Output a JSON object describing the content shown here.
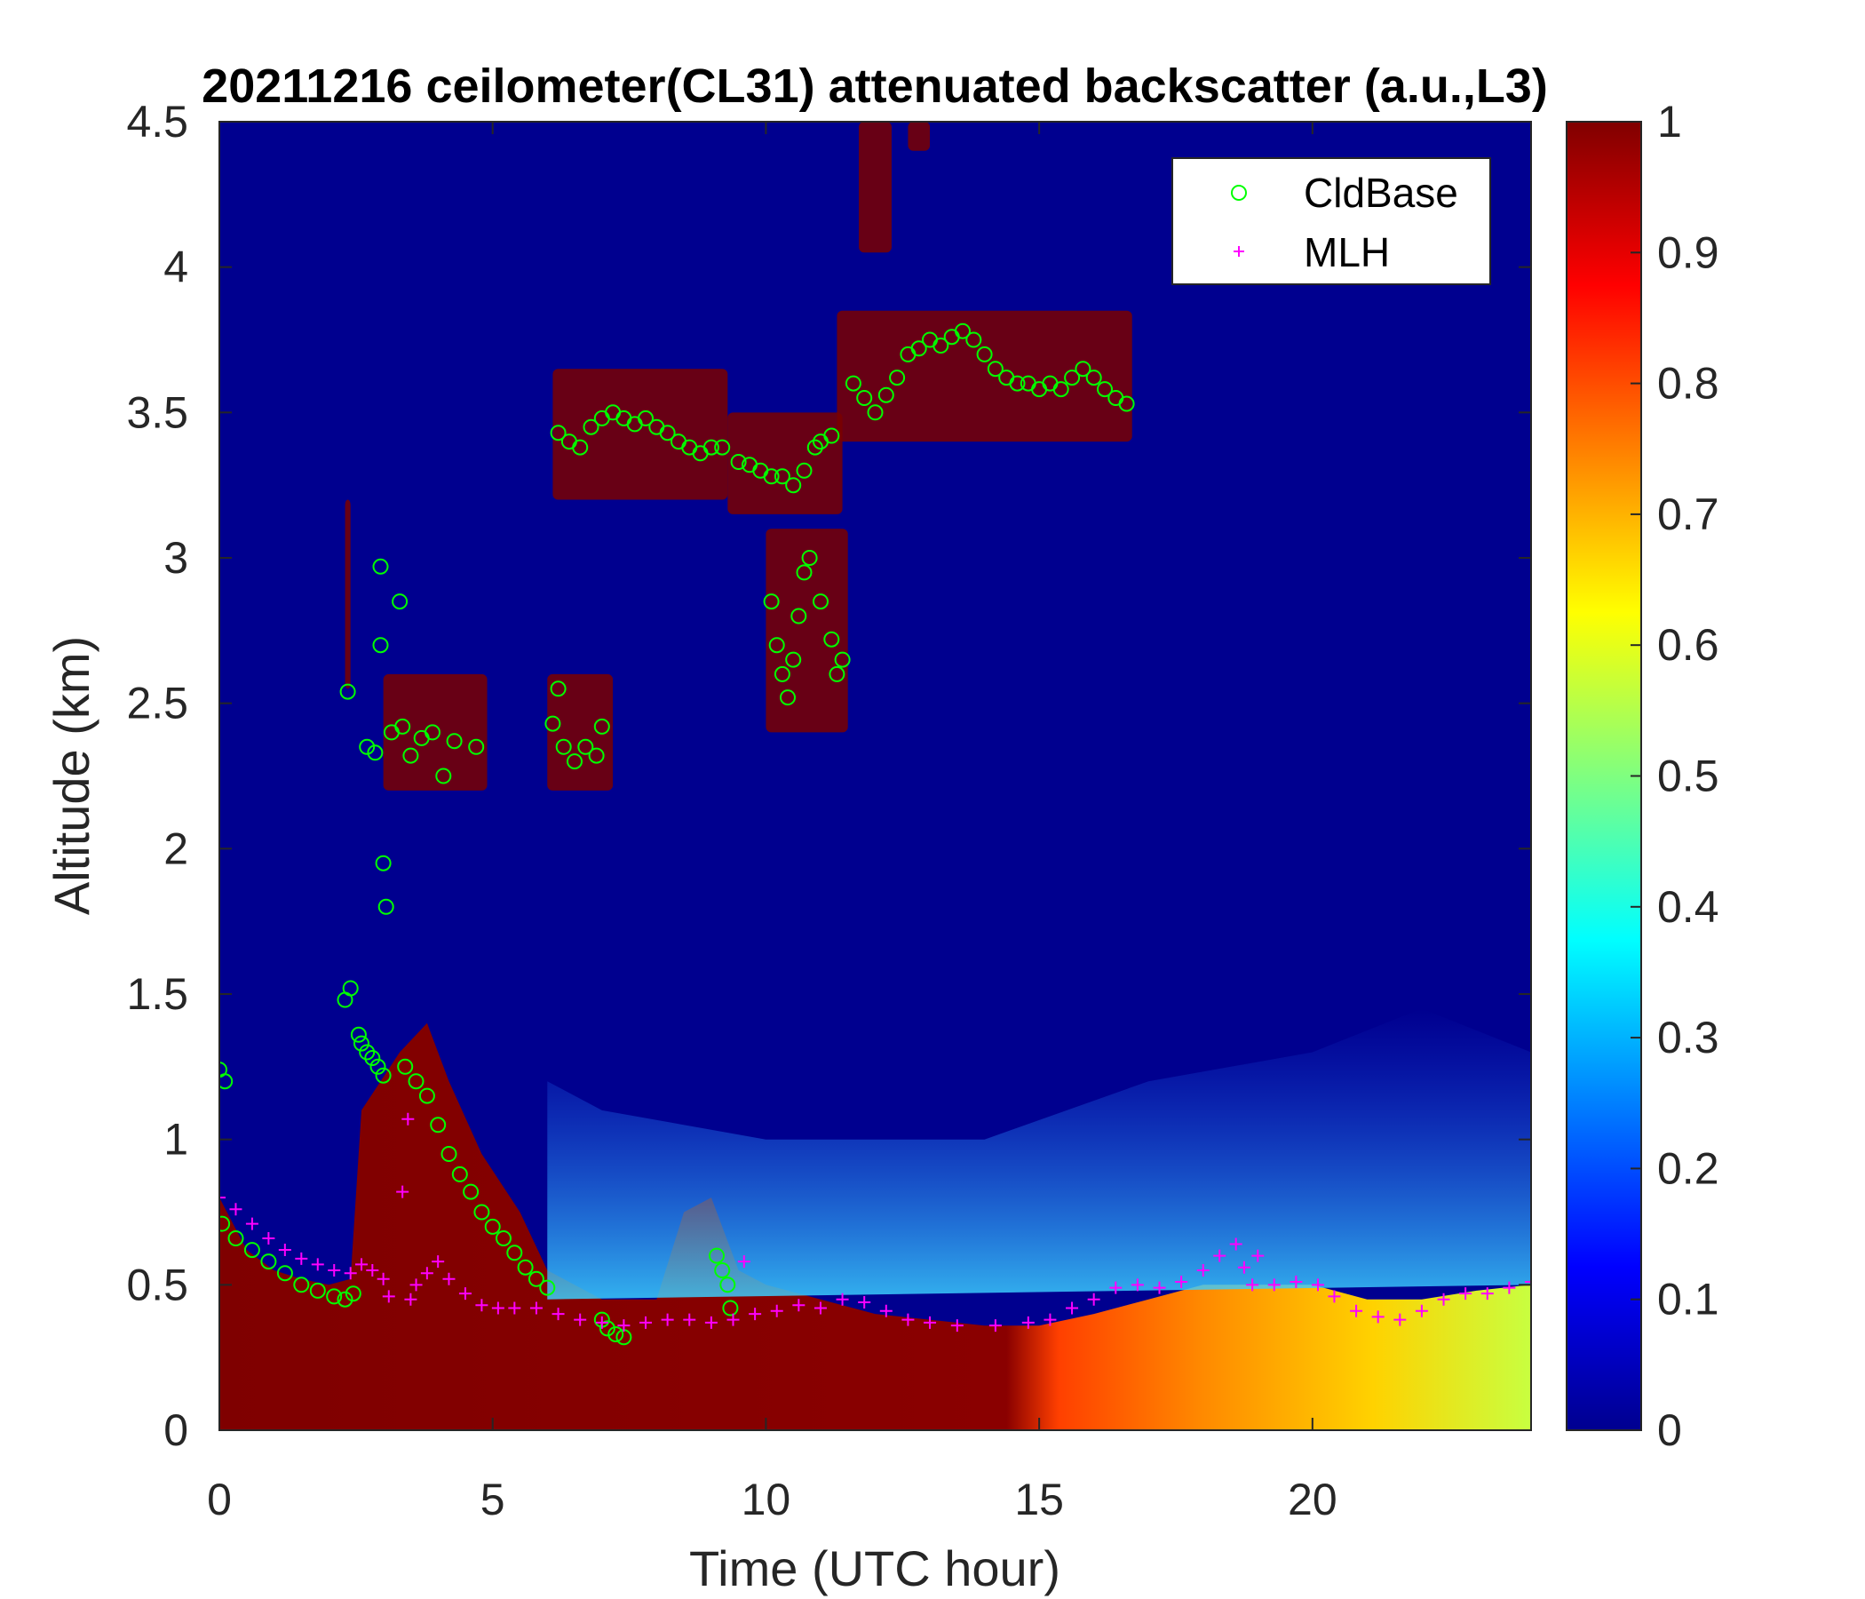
{
  "chart_data": {
    "type": "heatmap",
    "title": "20211216 ceilometer(CL31) attenuated backscatter (a.u.,L3)",
    "xlabel": "Time (UTC hour)",
    "ylabel": "Altitude (km)",
    "xlim": [
      0,
      24
    ],
    "ylim": [
      0,
      4.5
    ],
    "xticks": [
      "0",
      "5",
      "10",
      "15",
      "20"
    ],
    "yticks": [
      "0",
      "0.5",
      "1",
      "1.5",
      "2",
      "2.5",
      "3",
      "3.5",
      "4",
      "4.5"
    ],
    "colorbar": {
      "colormap": "jet",
      "range": [
        0,
        1
      ],
      "ticks": [
        "0",
        "0.1",
        "0.2",
        "0.3",
        "0.4",
        "0.5",
        "0.6",
        "0.7",
        "0.8",
        "0.9",
        "1"
      ]
    },
    "legend": {
      "placement": "top-right",
      "entries": [
        {
          "label": "CldBase",
          "marker": "circle",
          "color": "#00ff00"
        },
        {
          "label": "MLH",
          "marker": "plus",
          "color": "#ff00ff"
        }
      ]
    },
    "backscatter_layer_top_km": [
      [
        0,
        0.8
      ],
      [
        0.5,
        0.62
      ],
      [
        1,
        0.55
      ],
      [
        1.5,
        0.52
      ],
      [
        2,
        0.5
      ],
      [
        2.4,
        0.52
      ],
      [
        2.6,
        1.1
      ],
      [
        3.3,
        1.3
      ],
      [
        3.8,
        1.4
      ],
      [
        4.2,
        1.2
      ],
      [
        4.8,
        0.95
      ],
      [
        5.5,
        0.75
      ],
      [
        6,
        0.55
      ],
      [
        7,
        0.45
      ],
      [
        8,
        0.45
      ],
      [
        8.5,
        0.75
      ],
      [
        9,
        0.8
      ],
      [
        9.5,
        0.55
      ],
      [
        10,
        0.5
      ],
      [
        11,
        0.45
      ],
      [
        12,
        0.4
      ],
      [
        13,
        0.38
      ],
      [
        14,
        0.36
      ],
      [
        15,
        0.36
      ],
      [
        16,
        0.4
      ],
      [
        17,
        0.45
      ],
      [
        18,
        0.5
      ],
      [
        19,
        0.5
      ],
      [
        20,
        0.5
      ],
      [
        21,
        0.45
      ],
      [
        22,
        0.45
      ],
      [
        23,
        0.48
      ],
      [
        24,
        0.5
      ]
    ],
    "series": [
      {
        "name": "CldBase",
        "points": [
          [
            0,
            1.24
          ],
          [
            0.1,
            1.2
          ],
          [
            0.05,
            0.71
          ],
          [
            0.3,
            0.66
          ],
          [
            0.6,
            0.62
          ],
          [
            0.9,
            0.58
          ],
          [
            1.2,
            0.54
          ],
          [
            1.5,
            0.5
          ],
          [
            1.8,
            0.48
          ],
          [
            2.1,
            0.46
          ],
          [
            2.3,
            0.45
          ],
          [
            2.45,
            0.47
          ],
          [
            2.3,
            1.48
          ],
          [
            2.35,
            2.54
          ],
          [
            2.4,
            1.52
          ],
          [
            2.55,
            1.36
          ],
          [
            2.6,
            1.33
          ],
          [
            2.7,
            1.3
          ],
          [
            2.8,
            1.28
          ],
          [
            2.9,
            1.25
          ],
          [
            3.0,
            1.22
          ],
          [
            2.7,
            2.35
          ],
          [
            2.85,
            2.33
          ],
          [
            2.95,
            2.7
          ],
          [
            2.95,
            2.97
          ],
          [
            3.0,
            1.95
          ],
          [
            3.05,
            1.8
          ],
          [
            3.15,
            2.4
          ],
          [
            3.3,
            2.85
          ],
          [
            3.35,
            2.42
          ],
          [
            3.5,
            2.32
          ],
          [
            3.7,
            2.38
          ],
          [
            3.9,
            2.4
          ],
          [
            4.1,
            2.25
          ],
          [
            4.3,
            2.37
          ],
          [
            4.7,
            2.35
          ],
          [
            3.4,
            1.25
          ],
          [
            3.6,
            1.2
          ],
          [
            3.8,
            1.15
          ],
          [
            4.0,
            1.05
          ],
          [
            4.2,
            0.95
          ],
          [
            4.4,
            0.88
          ],
          [
            4.6,
            0.82
          ],
          [
            4.8,
            0.75
          ],
          [
            5.0,
            0.7
          ],
          [
            5.2,
            0.66
          ],
          [
            5.4,
            0.61
          ],
          [
            5.6,
            0.56
          ],
          [
            5.8,
            0.52
          ],
          [
            6.0,
            0.49
          ],
          [
            6.1,
            2.43
          ],
          [
            6.2,
            2.55
          ],
          [
            6.3,
            2.35
          ],
          [
            6.5,
            2.3
          ],
          [
            6.7,
            2.35
          ],
          [
            6.9,
            2.32
          ],
          [
            7.0,
            2.42
          ],
          [
            7.0,
            0.38
          ],
          [
            7.1,
            0.35
          ],
          [
            7.25,
            0.33
          ],
          [
            7.4,
            0.32
          ],
          [
            6.2,
            3.43
          ],
          [
            6.4,
            3.4
          ],
          [
            6.6,
            3.38
          ],
          [
            6.8,
            3.45
          ],
          [
            7.0,
            3.48
          ],
          [
            7.2,
            3.5
          ],
          [
            7.4,
            3.48
          ],
          [
            7.6,
            3.46
          ],
          [
            7.8,
            3.48
          ],
          [
            8.0,
            3.45
          ],
          [
            8.2,
            3.43
          ],
          [
            8.4,
            3.4
          ],
          [
            8.6,
            3.38
          ],
          [
            8.8,
            3.36
          ],
          [
            9.0,
            3.38
          ],
          [
            9.2,
            3.38
          ],
          [
            9.1,
            0.6
          ],
          [
            9.2,
            0.55
          ],
          [
            9.3,
            0.5
          ],
          [
            9.35,
            0.42
          ],
          [
            9.5,
            3.33
          ],
          [
            9.7,
            3.32
          ],
          [
            9.9,
            3.3
          ],
          [
            10.1,
            3.28
          ],
          [
            10.3,
            3.28
          ],
          [
            10.1,
            2.85
          ],
          [
            10.2,
            2.7
          ],
          [
            10.3,
            2.6
          ],
          [
            10.4,
            2.52
          ],
          [
            10.5,
            2.65
          ],
          [
            10.6,
            2.8
          ],
          [
            10.7,
            2.95
          ],
          [
            10.8,
            3.0
          ],
          [
            11.0,
            2.85
          ],
          [
            11.2,
            2.72
          ],
          [
            11.3,
            2.6
          ],
          [
            11.4,
            2.65
          ],
          [
            10.5,
            3.25
          ],
          [
            10.7,
            3.3
          ],
          [
            10.9,
            3.38
          ],
          [
            11.0,
            3.4
          ],
          [
            11.2,
            3.42
          ],
          [
            11.6,
            3.6
          ],
          [
            11.8,
            3.55
          ],
          [
            12.0,
            3.5
          ],
          [
            12.2,
            3.56
          ],
          [
            12.4,
            3.62
          ],
          [
            12.6,
            3.7
          ],
          [
            12.8,
            3.72
          ],
          [
            13.0,
            3.75
          ],
          [
            13.2,
            3.73
          ],
          [
            13.4,
            3.76
          ],
          [
            13.6,
            3.78
          ],
          [
            13.8,
            3.75
          ],
          [
            14.0,
            3.7
          ],
          [
            14.2,
            3.65
          ],
          [
            14.4,
            3.62
          ],
          [
            14.6,
            3.6
          ],
          [
            14.8,
            3.6
          ],
          [
            15.0,
            3.58
          ],
          [
            15.2,
            3.6
          ],
          [
            15.4,
            3.58
          ],
          [
            15.6,
            3.62
          ],
          [
            15.8,
            3.65
          ],
          [
            16.0,
            3.62
          ],
          [
            16.2,
            3.58
          ],
          [
            16.4,
            3.55
          ],
          [
            16.6,
            3.53
          ]
        ]
      },
      {
        "name": "MLH",
        "points": [
          [
            0,
            0.8
          ],
          [
            0.3,
            0.76
          ],
          [
            0.6,
            0.71
          ],
          [
            0.9,
            0.66
          ],
          [
            1.2,
            0.62
          ],
          [
            1.5,
            0.59
          ],
          [
            1.8,
            0.57
          ],
          [
            2.1,
            0.55
          ],
          [
            2.4,
            0.54
          ],
          [
            2.6,
            0.57
          ],
          [
            2.8,
            0.55
          ],
          [
            3.0,
            0.52
          ],
          [
            3.1,
            0.46
          ],
          [
            3.35,
            0.82
          ],
          [
            3.45,
            1.07
          ],
          [
            3.5,
            0.45
          ],
          [
            3.6,
            0.5
          ],
          [
            3.8,
            0.54
          ],
          [
            4.0,
            0.58
          ],
          [
            4.2,
            0.52
          ],
          [
            4.5,
            0.47
          ],
          [
            4.8,
            0.43
          ],
          [
            5.1,
            0.42
          ],
          [
            5.4,
            0.42
          ],
          [
            5.8,
            0.42
          ],
          [
            6.2,
            0.4
          ],
          [
            6.6,
            0.38
          ],
          [
            7.0,
            0.37
          ],
          [
            7.4,
            0.36
          ],
          [
            7.8,
            0.37
          ],
          [
            8.2,
            0.38
          ],
          [
            8.6,
            0.38
          ],
          [
            9.0,
            0.37
          ],
          [
            9.4,
            0.38
          ],
          [
            9.6,
            0.58
          ],
          [
            9.8,
            0.4
          ],
          [
            10.2,
            0.41
          ],
          [
            10.6,
            0.43
          ],
          [
            11.0,
            0.42
          ],
          [
            11.4,
            0.45
          ],
          [
            11.8,
            0.44
          ],
          [
            12.2,
            0.41
          ],
          [
            12.6,
            0.38
          ],
          [
            13.0,
            0.37
          ],
          [
            13.5,
            0.36
          ],
          [
            14.2,
            0.36
          ],
          [
            14.8,
            0.37
          ],
          [
            15.2,
            0.38
          ],
          [
            15.6,
            0.42
          ],
          [
            16.0,
            0.45
          ],
          [
            16.4,
            0.49
          ],
          [
            16.8,
            0.5
          ],
          [
            17.2,
            0.49
          ],
          [
            17.6,
            0.51
          ],
          [
            18.0,
            0.55
          ],
          [
            18.3,
            0.6
          ],
          [
            18.6,
            0.64
          ],
          [
            18.75,
            0.56
          ],
          [
            18.9,
            0.5
          ],
          [
            19.0,
            0.6
          ],
          [
            19.3,
            0.5
          ],
          [
            19.7,
            0.51
          ],
          [
            20.1,
            0.5
          ],
          [
            20.4,
            0.46
          ],
          [
            20.8,
            0.41
          ],
          [
            21.2,
            0.39
          ],
          [
            21.6,
            0.38
          ],
          [
            22.0,
            0.41
          ],
          [
            22.4,
            0.45
          ],
          [
            22.8,
            0.47
          ],
          [
            23.2,
            0.47
          ],
          [
            23.6,
            0.49
          ],
          [
            24.0,
            0.51
          ]
        ]
      }
    ]
  }
}
